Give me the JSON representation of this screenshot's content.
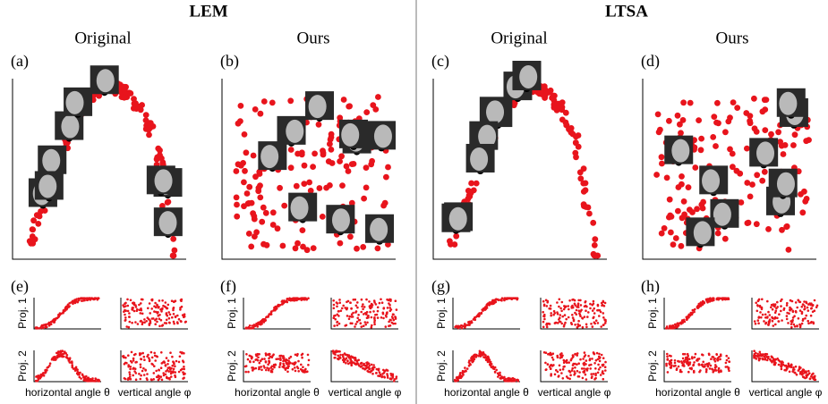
{
  "groups": [
    {
      "title": "LEM",
      "columns": [
        "Original",
        "Ours"
      ]
    },
    {
      "title": "LTSA",
      "columns": [
        "Original",
        "Ours"
      ]
    }
  ],
  "panels": {
    "top": [
      "(a)",
      "(b)",
      "(c)",
      "(d)"
    ],
    "bottom": [
      "(e)",
      "(f)",
      "(g)",
      "(h)"
    ]
  },
  "axis_labels": {
    "proj1": "Proj. 1",
    "proj2": "Proj. 2",
    "horizontal": "horizontal angle θ",
    "vertical": "vertical angle φ"
  }
}
